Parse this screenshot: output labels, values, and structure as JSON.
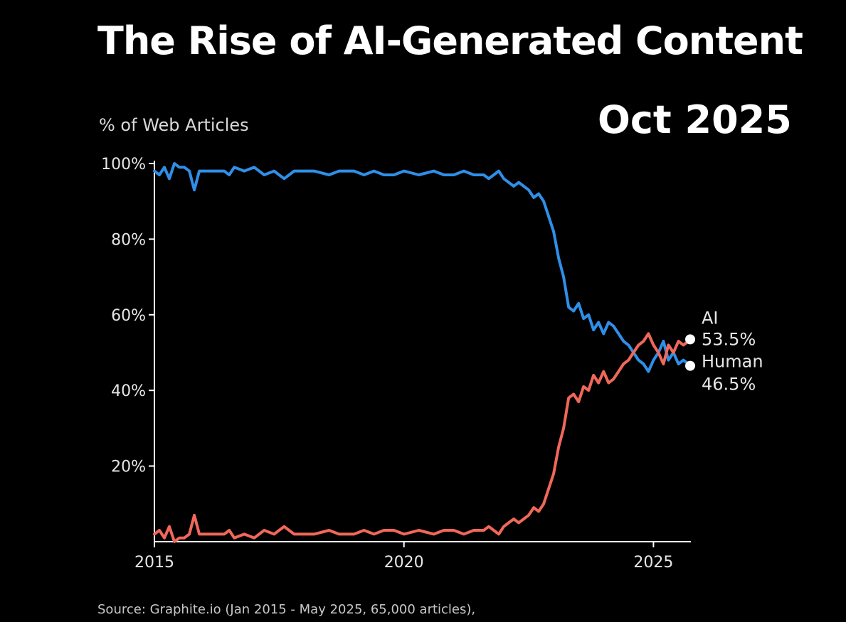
{
  "title": "The Rise of AI-Generated Content",
  "date_label": "Oct 2025",
  "source_text": "Source: Graphite.io (Jan 2015 - May 2025, 65,000 articles),",
  "chart_data": {
    "type": "line",
    "ylabel": "% of Web Articles",
    "xlim": [
      2015.0,
      2025.75
    ],
    "ylim": [
      0,
      100
    ],
    "x_ticks": [
      2015,
      2020,
      2025
    ],
    "y_ticks": [
      {
        "value": 100,
        "label": "100%"
      },
      {
        "value": 80,
        "label": "80%"
      },
      {
        "value": 60,
        "label": "60%"
      },
      {
        "value": 40,
        "label": "40%"
      },
      {
        "value": 20,
        "label": "20%"
      }
    ],
    "colors": {
      "ai": "#f0685a",
      "human": "#2f8fe8",
      "axis": "#ffffff",
      "marker": "#ffffff"
    },
    "series": [
      {
        "name": "Human",
        "key": "human",
        "end_label": "Human",
        "end_value_label": "46.5%",
        "points": [
          [
            2015.0,
            98
          ],
          [
            2015.1,
            97
          ],
          [
            2015.2,
            99
          ],
          [
            2015.3,
            96
          ],
          [
            2015.4,
            100
          ],
          [
            2015.5,
            99
          ],
          [
            2015.6,
            99
          ],
          [
            2015.7,
            98
          ],
          [
            2015.8,
            93
          ],
          [
            2015.9,
            98
          ],
          [
            2016.0,
            98
          ],
          [
            2016.2,
            98
          ],
          [
            2016.4,
            98
          ],
          [
            2016.5,
            97
          ],
          [
            2016.6,
            99
          ],
          [
            2016.8,
            98
          ],
          [
            2017.0,
            99
          ],
          [
            2017.2,
            97
          ],
          [
            2017.4,
            98
          ],
          [
            2017.5,
            97
          ],
          [
            2017.6,
            96
          ],
          [
            2017.8,
            98
          ],
          [
            2018.0,
            98
          ],
          [
            2018.2,
            98
          ],
          [
            2018.5,
            97
          ],
          [
            2018.7,
            98
          ],
          [
            2019.0,
            98
          ],
          [
            2019.2,
            97
          ],
          [
            2019.4,
            98
          ],
          [
            2019.6,
            97
          ],
          [
            2019.8,
            97
          ],
          [
            2020.0,
            98
          ],
          [
            2020.3,
            97
          ],
          [
            2020.6,
            98
          ],
          [
            2020.8,
            97
          ],
          [
            2021.0,
            97
          ],
          [
            2021.2,
            98
          ],
          [
            2021.4,
            97
          ],
          [
            2021.6,
            97
          ],
          [
            2021.7,
            96
          ],
          [
            2021.8,
            97
          ],
          [
            2021.9,
            98
          ],
          [
            2022.0,
            96
          ],
          [
            2022.1,
            95
          ],
          [
            2022.2,
            94
          ],
          [
            2022.3,
            95
          ],
          [
            2022.4,
            94
          ],
          [
            2022.5,
            93
          ],
          [
            2022.6,
            91
          ],
          [
            2022.7,
            92
          ],
          [
            2022.8,
            90
          ],
          [
            2022.9,
            86
          ],
          [
            2023.0,
            82
          ],
          [
            2023.1,
            75
          ],
          [
            2023.2,
            70
          ],
          [
            2023.3,
            62
          ],
          [
            2023.4,
            61
          ],
          [
            2023.5,
            63
          ],
          [
            2023.6,
            59
          ],
          [
            2023.7,
            60
          ],
          [
            2023.8,
            56
          ],
          [
            2023.9,
            58
          ],
          [
            2024.0,
            55
          ],
          [
            2024.1,
            58
          ],
          [
            2024.2,
            57
          ],
          [
            2024.3,
            55
          ],
          [
            2024.4,
            53
          ],
          [
            2024.5,
            52
          ],
          [
            2024.6,
            50
          ],
          [
            2024.7,
            48
          ],
          [
            2024.8,
            47
          ],
          [
            2024.9,
            45
          ],
          [
            2025.0,
            48
          ],
          [
            2025.1,
            50
          ],
          [
            2025.2,
            53
          ],
          [
            2025.3,
            48
          ],
          [
            2025.4,
            50
          ],
          [
            2025.5,
            47
          ],
          [
            2025.6,
            48
          ],
          [
            2025.75,
            46.5
          ]
        ]
      },
      {
        "name": "AI",
        "key": "ai",
        "end_label": "AI",
        "end_value_label": "53.5%",
        "points": [
          [
            2015.0,
            2
          ],
          [
            2015.1,
            3
          ],
          [
            2015.2,
            1
          ],
          [
            2015.3,
            4
          ],
          [
            2015.4,
            0
          ],
          [
            2015.5,
            1
          ],
          [
            2015.6,
            1
          ],
          [
            2015.7,
            2
          ],
          [
            2015.8,
            7
          ],
          [
            2015.9,
            2
          ],
          [
            2016.0,
            2
          ],
          [
            2016.2,
            2
          ],
          [
            2016.4,
            2
          ],
          [
            2016.5,
            3
          ],
          [
            2016.6,
            1
          ],
          [
            2016.8,
            2
          ],
          [
            2017.0,
            1
          ],
          [
            2017.2,
            3
          ],
          [
            2017.4,
            2
          ],
          [
            2017.5,
            3
          ],
          [
            2017.6,
            4
          ],
          [
            2017.8,
            2
          ],
          [
            2018.0,
            2
          ],
          [
            2018.2,
            2
          ],
          [
            2018.5,
            3
          ],
          [
            2018.7,
            2
          ],
          [
            2019.0,
            2
          ],
          [
            2019.2,
            3
          ],
          [
            2019.4,
            2
          ],
          [
            2019.6,
            3
          ],
          [
            2019.8,
            3
          ],
          [
            2020.0,
            2
          ],
          [
            2020.3,
            3
          ],
          [
            2020.6,
            2
          ],
          [
            2020.8,
            3
          ],
          [
            2021.0,
            3
          ],
          [
            2021.2,
            2
          ],
          [
            2021.4,
            3
          ],
          [
            2021.6,
            3
          ],
          [
            2021.7,
            4
          ],
          [
            2021.8,
            3
          ],
          [
            2021.9,
            2
          ],
          [
            2022.0,
            4
          ],
          [
            2022.1,
            5
          ],
          [
            2022.2,
            6
          ],
          [
            2022.3,
            5
          ],
          [
            2022.4,
            6
          ],
          [
            2022.5,
            7
          ],
          [
            2022.6,
            9
          ],
          [
            2022.7,
            8
          ],
          [
            2022.8,
            10
          ],
          [
            2022.9,
            14
          ],
          [
            2023.0,
            18
          ],
          [
            2023.1,
            25
          ],
          [
            2023.2,
            30
          ],
          [
            2023.3,
            38
          ],
          [
            2023.4,
            39
          ],
          [
            2023.5,
            37
          ],
          [
            2023.6,
            41
          ],
          [
            2023.7,
            40
          ],
          [
            2023.8,
            44
          ],
          [
            2023.9,
            42
          ],
          [
            2024.0,
            45
          ],
          [
            2024.1,
            42
          ],
          [
            2024.2,
            43
          ],
          [
            2024.3,
            45
          ],
          [
            2024.4,
            47
          ],
          [
            2024.5,
            48
          ],
          [
            2024.6,
            50
          ],
          [
            2024.7,
            52
          ],
          [
            2024.8,
            53
          ],
          [
            2024.9,
            55
          ],
          [
            2025.0,
            52
          ],
          [
            2025.1,
            50
          ],
          [
            2025.2,
            47
          ],
          [
            2025.3,
            52
          ],
          [
            2025.4,
            50
          ],
          [
            2025.5,
            53
          ],
          [
            2025.6,
            52
          ],
          [
            2025.75,
            53.5
          ]
        ]
      }
    ]
  }
}
